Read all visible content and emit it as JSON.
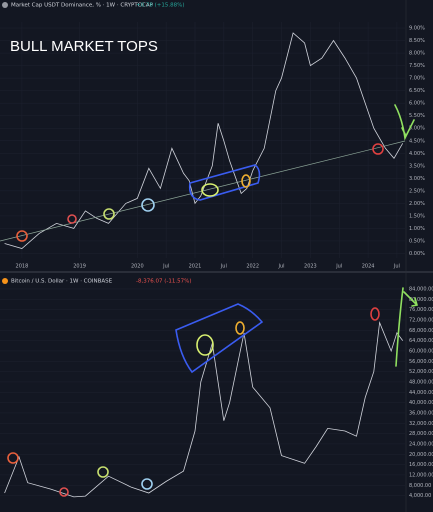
{
  "chart_data": [
    {
      "type": "line",
      "title": "Market Cap USDT Dominance, % · 1W · CRYPTOCAP",
      "change": "+0.78 (+15.88%)",
      "annotation": "BULL MARKET TOPS",
      "color": "#d1d4dc",
      "x": [
        2017.7,
        2018.0,
        2018.3,
        2018.6,
        2018.9,
        2019.1,
        2019.3,
        2019.5,
        2019.8,
        2020.0,
        2020.2,
        2020.4,
        2020.6,
        2020.8,
        2020.9,
        2021.0,
        2021.1,
        2021.3,
        2021.4,
        2021.5,
        2021.6,
        2021.8,
        2021.9,
        2022.0,
        2022.2,
        2022.4,
        2022.5,
        2022.7,
        2022.9,
        2023.0,
        2023.2,
        2023.4,
        2023.6,
        2023.8,
        2023.95,
        2024.1,
        2024.3,
        2024.45,
        2024.6
      ],
      "values": [
        0.4,
        0.2,
        0.8,
        1.2,
        1.0,
        1.7,
        1.4,
        1.2,
        2.0,
        2.2,
        3.4,
        2.6,
        4.2,
        3.2,
        2.9,
        2.0,
        2.3,
        3.5,
        5.2,
        4.5,
        3.7,
        2.4,
        2.6,
        3.3,
        4.2,
        6.5,
        7.0,
        8.8,
        8.4,
        7.5,
        7.8,
        8.5,
        7.8,
        7.0,
        6.0,
        5.0,
        4.2,
        3.8,
        4.4
      ],
      "xlim": [
        2017.62,
        2024.64
      ],
      "xticks": [
        2018,
        2019,
        2020,
        {
          "value": 2020.5,
          "label": "Jul"
        },
        2021,
        {
          "value": 2021.5,
          "label": "Jul"
        },
        2022,
        {
          "value": 2022.5,
          "label": "Jul"
        },
        2023,
        {
          "value": 2023.5,
          "label": "Jul"
        },
        2024,
        {
          "value": 2024.5,
          "label": "Jul"
        }
      ],
      "ylim": [
        -0.18,
        9.24
      ],
      "yticks": [
        {
          "value": 9,
          "label": "9.00%"
        },
        {
          "value": 8.5,
          "label": "8.50%"
        },
        {
          "value": 8,
          "label": "8.00%"
        },
        {
          "value": 7.5,
          "label": "7.50%"
        },
        {
          "value": 7,
          "label": "7.00%"
        },
        {
          "value": 6.5,
          "label": "6.50%"
        },
        {
          "value": 6,
          "label": "6.00%"
        },
        {
          "value": 5.5,
          "label": "5.50%"
        },
        {
          "value": 5,
          "label": "5.00%"
        },
        {
          "value": 4.5,
          "label": "4.50%"
        },
        {
          "value": 4,
          "label": "4.00%"
        },
        {
          "value": 3.5,
          "label": "3.50%"
        },
        {
          "value": 3,
          "label": "3.00%"
        },
        {
          "value": 2.5,
          "label": "2.50%"
        },
        {
          "value": 2,
          "label": "2.00%"
        },
        {
          "value": 1.5,
          "label": "1.50%"
        },
        {
          "value": 1,
          "label": "1.00%"
        },
        {
          "value": 0.5,
          "label": "0.50%"
        },
        {
          "value": 0,
          "label": "0.00%"
        }
      ]
    },
    {
      "type": "line",
      "title": "Bitcoin / U.S. Dollar · 1W · COINBASE",
      "change": "-8,376.07 (-11.57%)",
      "color": "#d1d4dc",
      "x": [
        2017.7,
        2017.95,
        2018.1,
        2018.5,
        2018.9,
        2019.1,
        2019.5,
        2019.9,
        2020.2,
        2020.5,
        2020.8,
        2021.0,
        2021.1,
        2021.3,
        2021.5,
        2021.6,
        2021.85,
        2022.0,
        2022.3,
        2022.5,
        2022.9,
        2023.1,
        2023.3,
        2023.6,
        2023.8,
        2023.95,
        2024.1,
        2024.2,
        2024.4,
        2024.5,
        2024.6
      ],
      "values": [
        5000,
        19000,
        9000,
        6500,
        3500,
        3800,
        11500,
        7200,
        5000,
        9500,
        13500,
        29000,
        48000,
        63000,
        33000,
        40000,
        67000,
        46000,
        38000,
        19500,
        16500,
        23000,
        30000,
        29000,
        27000,
        42000,
        52000,
        71000,
        60000,
        67000,
        64000
      ],
      "xlim": [
        2017.62,
        2024.64
      ],
      "ylim": [
        -800,
        86700
      ],
      "yticks": [
        {
          "value": 84000,
          "label": "84,000.00"
        },
        {
          "value": 80000,
          "label": "80,000.00"
        },
        {
          "value": 76000,
          "label": "76,000.00"
        },
        {
          "value": 72000,
          "label": "72,000.00"
        },
        {
          "value": 68000,
          "label": "68,000.00"
        },
        {
          "value": 64000,
          "label": "64,000.00"
        },
        {
          "value": 60000,
          "label": "60,000.00"
        },
        {
          "value": 56000,
          "label": "56,000.00"
        },
        {
          "value": 52000,
          "label": "52,000.00"
        },
        {
          "value": 48000,
          "label": "48,000.00"
        },
        {
          "value": 44000,
          "label": "44,000.00"
        },
        {
          "value": 40000,
          "label": "40,000.00"
        },
        {
          "value": 36000,
          "label": "36,000.00"
        },
        {
          "value": 32000,
          "label": "32,000.00"
        },
        {
          "value": 28000,
          "label": "28,000.00"
        },
        {
          "value": 24000,
          "label": "24,000.00"
        },
        {
          "value": 20000,
          "label": "20,000.00"
        },
        {
          "value": 16000,
          "label": "16,000.00"
        },
        {
          "value": 12000,
          "label": "12,000.00"
        },
        {
          "value": 8000,
          "label": "8,000.00"
        },
        {
          "value": 4000,
          "label": "4,000.00"
        }
      ]
    }
  ]
}
